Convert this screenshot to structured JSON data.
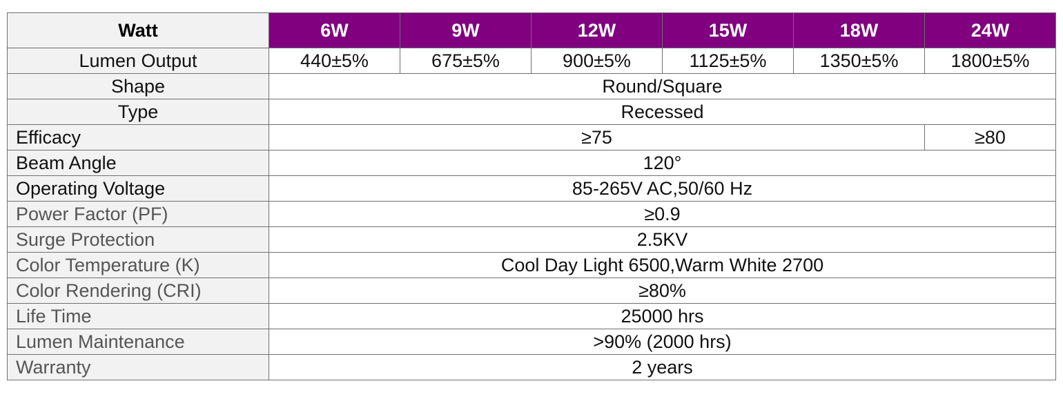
{
  "colors": {
    "header_accent": "#800080",
    "label_background": "#f2f2f2",
    "border": "#6f6f6f"
  },
  "header": {
    "label": "Watt",
    "columns": [
      "6W",
      "9W",
      "12W",
      "15W",
      "18W",
      "24W"
    ]
  },
  "lumen_output": {
    "label": "Lumen Output",
    "values": [
      "440±5%",
      "675±5%",
      "900±5%",
      "1125±5%",
      "1350±5%",
      "1800±5%"
    ]
  },
  "shape": {
    "label": "Shape",
    "value": "Round/Square"
  },
  "type": {
    "label": "Type",
    "value": "Recessed"
  },
  "efficacy": {
    "label": "Efficacy",
    "value_main": "≥75",
    "value_24w": "≥80"
  },
  "beam_angle": {
    "label": "Beam Angle",
    "value": "120°"
  },
  "operating_voltage": {
    "label": "Operating Voltage",
    "value": "85-265V AC,50/60 Hz"
  },
  "power_factor": {
    "label": "Power Factor (PF)",
    "value": "≥0.9"
  },
  "surge_protection": {
    "label": "Surge Protection",
    "value": "2.5KV"
  },
  "color_temperature": {
    "label": "Color Temperature (K)",
    "value": "Cool Day Light 6500,Warm White 2700"
  },
  "color_rendering": {
    "label": "Color Rendering (CRI)",
    "value": "≥80%"
  },
  "life_time": {
    "label": "Life Time",
    "value": "25000 hrs"
  },
  "lumen_maintenance": {
    "label": "Lumen Maintenance",
    "value": ">90% (2000 hrs)"
  },
  "warranty": {
    "label": "Warranty",
    "value": "2 years"
  }
}
